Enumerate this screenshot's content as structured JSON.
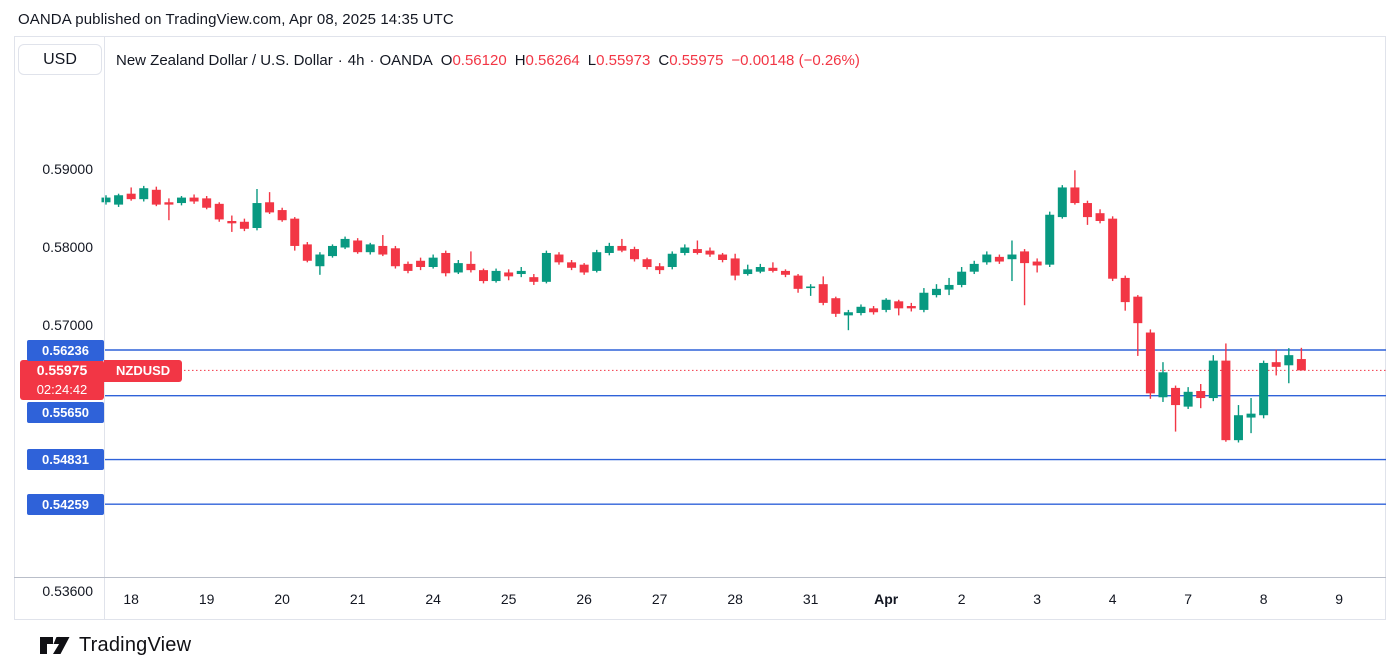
{
  "publisher_bar": {
    "text": "OANDA published on TradingView.com, Apr 08, 2025 14:35 UTC"
  },
  "toolbar": {
    "currency_button_label": "USD"
  },
  "symbol_info": {
    "title": "New Zealand Dollar / U.S. Dollar",
    "separator": "·",
    "interval": "4h",
    "exchange": "OANDA",
    "ohlc": [
      {
        "label": "O",
        "value": "0.56120"
      },
      {
        "label": "H",
        "value": "0.56264"
      },
      {
        "label": "L",
        "value": "0.55973"
      },
      {
        "label": "C",
        "value": "0.55975"
      }
    ],
    "change": "−0.00148 (−0.26%)"
  },
  "colors": {
    "up": "#089981",
    "down": "#f23645",
    "line_blue": "#2f62d9",
    "text": "#131722",
    "border": "#e0e3eb"
  },
  "price_lines": [
    {
      "label": "0.56236",
      "price": 0.56236
    },
    {
      "label": "0.55650",
      "price": 0.5565
    },
    {
      "label": "0.54831",
      "price": 0.54831
    },
    {
      "label": "0.54259",
      "price": 0.54259
    }
  ],
  "last_price": {
    "value": "0.55975",
    "price": 0.55975,
    "countdown": "02:24:42",
    "symbol_tag": "NZDUSD"
  },
  "footer": {
    "logo_text": "TradingView"
  },
  "chart_data": {
    "type": "candlestick",
    "symbol": "NZDUSD",
    "timeframe": "4h",
    "title": "New Zealand Dollar / U.S. Dollar · 4h · OANDA",
    "grid": "off",
    "y_axis_side": "left",
    "ylim_ticks": [
      0.536,
      0.59
    ],
    "y_ticks": [
      {
        "label": "0.59000",
        "price": 0.59
      },
      {
        "label": "0.58000",
        "price": 0.58
      },
      {
        "label": "0.57000",
        "price": 0.57
      },
      {
        "label": "0.53600",
        "price": 0.536
      }
    ],
    "x_ticks": [
      {
        "label": "18",
        "at_candle": 2,
        "bold": false
      },
      {
        "label": "19",
        "at_candle": 8,
        "bold": false
      },
      {
        "label": "20",
        "at_candle": 14,
        "bold": false
      },
      {
        "label": "21",
        "at_candle": 20,
        "bold": false
      },
      {
        "label": "24",
        "at_candle": 26,
        "bold": false
      },
      {
        "label": "25",
        "at_candle": 32,
        "bold": false
      },
      {
        "label": "26",
        "at_candle": 38,
        "bold": false
      },
      {
        "label": "27",
        "at_candle": 44,
        "bold": false
      },
      {
        "label": "28",
        "at_candle": 50,
        "bold": false
      },
      {
        "label": "31",
        "at_candle": 56,
        "bold": false
      },
      {
        "label": "Apr",
        "at_candle": 62,
        "bold": true
      },
      {
        "label": "2",
        "at_candle": 68,
        "bold": false
      },
      {
        "label": "3",
        "at_candle": 74,
        "bold": false
      },
      {
        "label": "4",
        "at_candle": 80,
        "bold": false
      },
      {
        "label": "7",
        "at_candle": 86,
        "bold": false
      },
      {
        "label": "8",
        "at_candle": 92,
        "bold": false
      },
      {
        "label": "9",
        "at_candle": 98,
        "bold": false
      }
    ],
    "columns": [
      "open",
      "high",
      "low",
      "close"
    ],
    "candles": [
      [
        0.5813,
        0.5822,
        0.581,
        0.5819
      ],
      [
        0.581,
        0.5824,
        0.5807,
        0.5822
      ],
      [
        0.5824,
        0.5832,
        0.5815,
        0.5817
      ],
      [
        0.5817,
        0.5834,
        0.5814,
        0.5831
      ],
      [
        0.5829,
        0.5833,
        0.5808,
        0.581
      ],
      [
        0.5813,
        0.5818,
        0.579,
        0.581
      ],
      [
        0.5812,
        0.5821,
        0.5809,
        0.5819
      ],
      [
        0.5819,
        0.5823,
        0.5811,
        0.5814
      ],
      [
        0.5818,
        0.5821,
        0.5804,
        0.5806
      ],
      [
        0.5811,
        0.5813,
        0.5788,
        0.5791
      ],
      [
        0.5789,
        0.5796,
        0.5775,
        0.5786
      ],
      [
        0.5788,
        0.5792,
        0.5776,
        0.5779
      ],
      [
        0.578,
        0.583,
        0.5777,
        0.5812
      ],
      [
        0.5813,
        0.5826,
        0.5798,
        0.58
      ],
      [
        0.5803,
        0.5806,
        0.5788,
        0.579
      ],
      [
        0.5792,
        0.5794,
        0.5751,
        0.5757
      ],
      [
        0.5759,
        0.5762,
        0.5736,
        0.5738
      ],
      [
        0.5731,
        0.5749,
        0.572,
        0.5746
      ],
      [
        0.5744,
        0.5759,
        0.5742,
        0.5757
      ],
      [
        0.5755,
        0.5769,
        0.5753,
        0.5766
      ],
      [
        0.5764,
        0.5767,
        0.5747,
        0.5749
      ],
      [
        0.5749,
        0.5761,
        0.5746,
        0.5759
      ],
      [
        0.5757,
        0.5771,
        0.5744,
        0.5746
      ],
      [
        0.5754,
        0.5757,
        0.5728,
        0.5731
      ],
      [
        0.5734,
        0.5737,
        0.5722,
        0.5725
      ],
      [
        0.5738,
        0.5742,
        0.5726,
        0.573
      ],
      [
        0.573,
        0.5746,
        0.5728,
        0.5742
      ],
      [
        0.5748,
        0.5751,
        0.5718,
        0.5722
      ],
      [
        0.5723,
        0.5739,
        0.5721,
        0.5735
      ],
      [
        0.5734,
        0.575,
        0.5723,
        0.5726
      ],
      [
        0.5726,
        0.5728,
        0.5709,
        0.5712
      ],
      [
        0.5712,
        0.5728,
        0.571,
        0.5725
      ],
      [
        0.5723,
        0.5727,
        0.5713,
        0.5718
      ],
      [
        0.5721,
        0.573,
        0.5717,
        0.5725
      ],
      [
        0.5717,
        0.5721,
        0.5707,
        0.5711
      ],
      [
        0.5711,
        0.5751,
        0.5709,
        0.5748
      ],
      [
        0.5746,
        0.5749,
        0.5733,
        0.5736
      ],
      [
        0.5736,
        0.5739,
        0.5726,
        0.5729
      ],
      [
        0.5733,
        0.5735,
        0.572,
        0.5723
      ],
      [
        0.5725,
        0.5752,
        0.5723,
        0.5749
      ],
      [
        0.5748,
        0.5761,
        0.5745,
        0.5757
      ],
      [
        0.5757,
        0.5766,
        0.5749,
        0.5751
      ],
      [
        0.5753,
        0.5756,
        0.5737,
        0.574
      ],
      [
        0.574,
        0.5742,
        0.5727,
        0.573
      ],
      [
        0.5731,
        0.5735,
        0.5721,
        0.5726
      ],
      [
        0.573,
        0.575,
        0.5727,
        0.5747
      ],
      [
        0.5748,
        0.5759,
        0.5745,
        0.5755
      ],
      [
        0.5753,
        0.5764,
        0.5746,
        0.5748
      ],
      [
        0.5751,
        0.5755,
        0.5743,
        0.5746
      ],
      [
        0.5746,
        0.5748,
        0.5736,
        0.5739
      ],
      [
        0.5741,
        0.5747,
        0.5713,
        0.5719
      ],
      [
        0.5721,
        0.5733,
        0.5719,
        0.5727
      ],
      [
        0.5724,
        0.5734,
        0.5722,
        0.573
      ],
      [
        0.5729,
        0.5736,
        0.5723,
        0.5725
      ],
      [
        0.5725,
        0.5727,
        0.5717,
        0.572
      ],
      [
        0.5719,
        0.5721,
        0.5697,
        0.5702
      ],
      [
        0.5703,
        0.5708,
        0.5693,
        0.5705
      ],
      [
        0.5708,
        0.5718,
        0.5681,
        0.5684
      ],
      [
        0.569,
        0.5692,
        0.5666,
        0.567
      ],
      [
        0.5668,
        0.5675,
        0.5649,
        0.5672
      ],
      [
        0.5671,
        0.5682,
        0.5668,
        0.5679
      ],
      [
        0.5677,
        0.568,
        0.5669,
        0.5672
      ],
      [
        0.5675,
        0.569,
        0.5672,
        0.5688
      ],
      [
        0.5686,
        0.5688,
        0.5668,
        0.5677
      ],
      [
        0.568,
        0.5684,
        0.5673,
        0.5677
      ],
      [
        0.5675,
        0.5703,
        0.5672,
        0.5697
      ],
      [
        0.5694,
        0.5708,
        0.5691,
        0.5702
      ],
      [
        0.5701,
        0.5716,
        0.5694,
        0.5707
      ],
      [
        0.5707,
        0.573,
        0.5704,
        0.5724
      ],
      [
        0.5724,
        0.5738,
        0.5721,
        0.5734
      ],
      [
        0.5736,
        0.575,
        0.5733,
        0.5746
      ],
      [
        0.5743,
        0.5746,
        0.5734,
        0.5737
      ],
      [
        0.574,
        0.5764,
        0.5712,
        0.5746
      ],
      [
        0.575,
        0.5753,
        0.5681,
        0.5735
      ],
      [
        0.5737,
        0.5741,
        0.5723,
        0.5732
      ],
      [
        0.5733,
        0.5801,
        0.573,
        0.5797
      ],
      [
        0.5794,
        0.5835,
        0.5792,
        0.5832
      ],
      [
        0.5832,
        0.5854,
        0.581,
        0.5812
      ],
      [
        0.5812,
        0.5815,
        0.5784,
        0.5794
      ],
      [
        0.5799,
        0.5804,
        0.5786,
        0.5789
      ],
      [
        0.5792,
        0.5795,
        0.5712,
        0.5715
      ],
      [
        0.5716,
        0.5719,
        0.5674,
        0.5685
      ],
      [
        0.5692,
        0.5694,
        0.5616,
        0.5658
      ],
      [
        0.5646,
        0.565,
        0.5561,
        0.5568
      ],
      [
        0.5563,
        0.5608,
        0.5557,
        0.5595
      ],
      [
        0.5575,
        0.5578,
        0.5519,
        0.5553
      ],
      [
        0.5551,
        0.5576,
        0.5548,
        0.557
      ],
      [
        0.5571,
        0.558,
        0.5549,
        0.5562
      ],
      [
        0.5562,
        0.5617,
        0.5558,
        0.561
      ],
      [
        0.561,
        0.5632,
        0.5506,
        0.5508
      ],
      [
        0.5508,
        0.5553,
        0.5505,
        0.554
      ],
      [
        0.5537,
        0.5562,
        0.5517,
        0.5542
      ],
      [
        0.554,
        0.561,
        0.5536,
        0.5607
      ],
      [
        0.5608,
        0.5624,
        0.5591,
        0.5602
      ],
      [
        0.5604,
        0.5626,
        0.5581,
        0.5617
      ],
      [
        0.5612,
        0.56264,
        0.55973,
        0.55975
      ]
    ]
  }
}
